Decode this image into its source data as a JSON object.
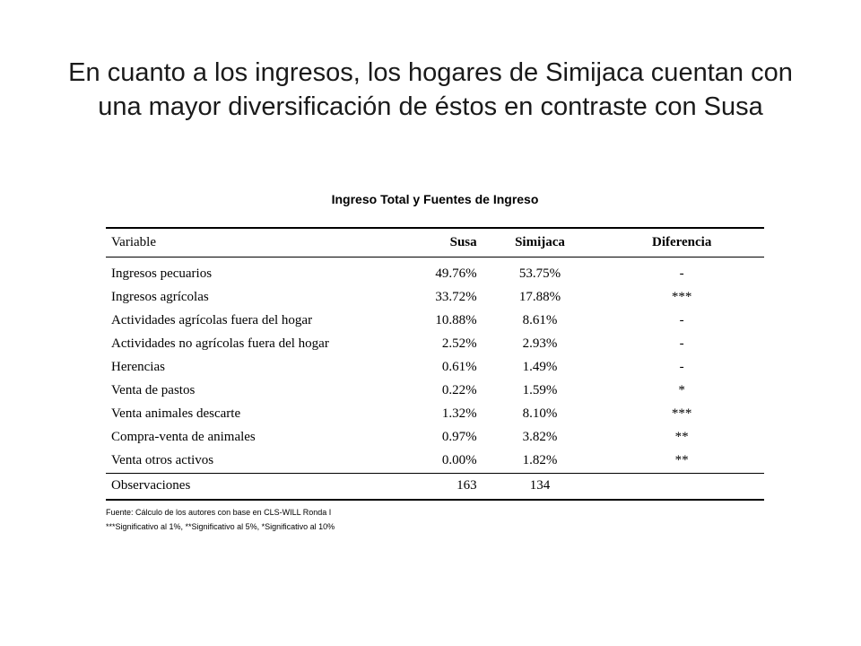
{
  "slide": {
    "title_line1": "En cuanto a los ingresos, los hogares de Simijaca cuentan con",
    "title_line2": "una mayor diversificación de éstos en contraste con Susa"
  },
  "table": {
    "caption": "Ingreso Total y Fuentes de Ingreso",
    "headers": [
      "Variable",
      "Susa",
      "Simijaca",
      "Diferencia"
    ],
    "rows": [
      {
        "variable": "Ingresos pecuarios",
        "susa": "49.76%",
        "simijaca": "53.75%",
        "diferencia": "-"
      },
      {
        "variable": "Ingresos agrícolas",
        "susa": "33.72%",
        "simijaca": "17.88%",
        "diferencia": "***"
      },
      {
        "variable": "Actividades agrícolas fuera del hogar",
        "susa": "10.88%",
        "simijaca": "8.61%",
        "diferencia": "-"
      },
      {
        "variable": "Actividades no agrícolas fuera del hogar",
        "susa": "2.52%",
        "simijaca": "2.93%",
        "diferencia": "-"
      },
      {
        "variable": "Herencias",
        "susa": "0.61%",
        "simijaca": "1.49%",
        "diferencia": "-"
      },
      {
        "variable": "Venta de pastos",
        "susa": "0.22%",
        "simijaca": "1.59%",
        "diferencia": "*"
      },
      {
        "variable": "Venta animales descarte",
        "susa": "1.32%",
        "simijaca": "8.10%",
        "diferencia": "***"
      },
      {
        "variable": "Compra-venta de animales",
        "susa": "0.97%",
        "simijaca": "3.82%",
        "diferencia": "**"
      },
      {
        "variable": "Venta otros activos",
        "susa": "0.00%",
        "simijaca": "1.82%",
        "diferencia": "**"
      }
    ],
    "observations": {
      "label": "Observaciones",
      "susa": "163",
      "simijaca": "134",
      "diferencia": ""
    }
  },
  "notes": {
    "source": "Fuente: Cálculo de los autores con base en CLS-WILL Ronda I",
    "significance": "***Significativo al 1%, **Significativo al 5%, *Significativo al 10%"
  }
}
